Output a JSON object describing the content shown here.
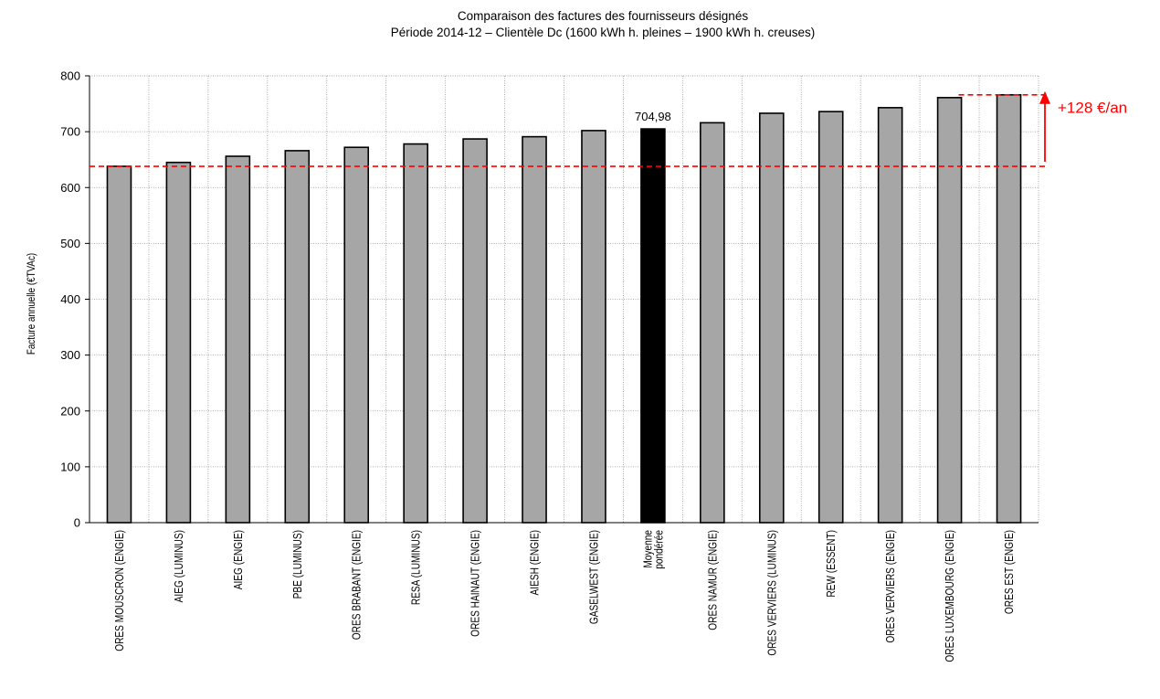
{
  "chart_data": {
    "type": "bar",
    "title": "Comparaison des factures des fournisseurs désignés",
    "subtitle": "Période 2014-12 – Clientèle Dc (1600 kWh h. pleines – 1900 kWh h. creuses)",
    "ylabel": "Facture annuelle (€TVAc)",
    "xlabel": "",
    "ylim": [
      0,
      800
    ],
    "yticks": [
      0,
      100,
      200,
      300,
      400,
      500,
      600,
      700,
      800
    ],
    "grid": true,
    "categories": [
      [
        "ORES MOUSCRON (ENGIE)"
      ],
      [
        "AIEG (LUMINUS)"
      ],
      [
        "AIEG (ENGIE)"
      ],
      [
        "PBE (LUMINUS)"
      ],
      [
        "ORES BRABANT (ENGIE)"
      ],
      [
        "RESA  (LUMINUS)"
      ],
      [
        "ORES HAINAUT (ENGIE)"
      ],
      [
        "AIESH (ENGIE)"
      ],
      [
        "GASELWEST (ENGIE)"
      ],
      [
        "Moyenne",
        "pondérée"
      ],
      [
        "ORES NAMUR (ENGIE)"
      ],
      [
        "ORES VERVIERS  (LUMINUS)"
      ],
      [
        "REW (ESSENT)"
      ],
      [
        "ORES VERVIERS (ENGIE)"
      ],
      [
        "ORES LUXEMBOURG (ENGIE)"
      ],
      [
        "ORES EST (ENGIE)"
      ]
    ],
    "values": [
      638,
      645,
      656,
      666,
      672,
      678,
      687,
      691,
      702,
      704.98,
      716,
      733,
      736,
      743,
      761,
      766
    ],
    "highlight_index": 9,
    "data_labels": [
      {
        "index": 9,
        "text": "704,98"
      }
    ],
    "colors": {
      "bar": "#a6a6a6",
      "highlight": "#000000",
      "reference": "#ff0000",
      "grid": "#999999"
    },
    "annotations": {
      "reference_low": 638,
      "reference_high": 766,
      "difference_text": "+128 €/an"
    }
  }
}
